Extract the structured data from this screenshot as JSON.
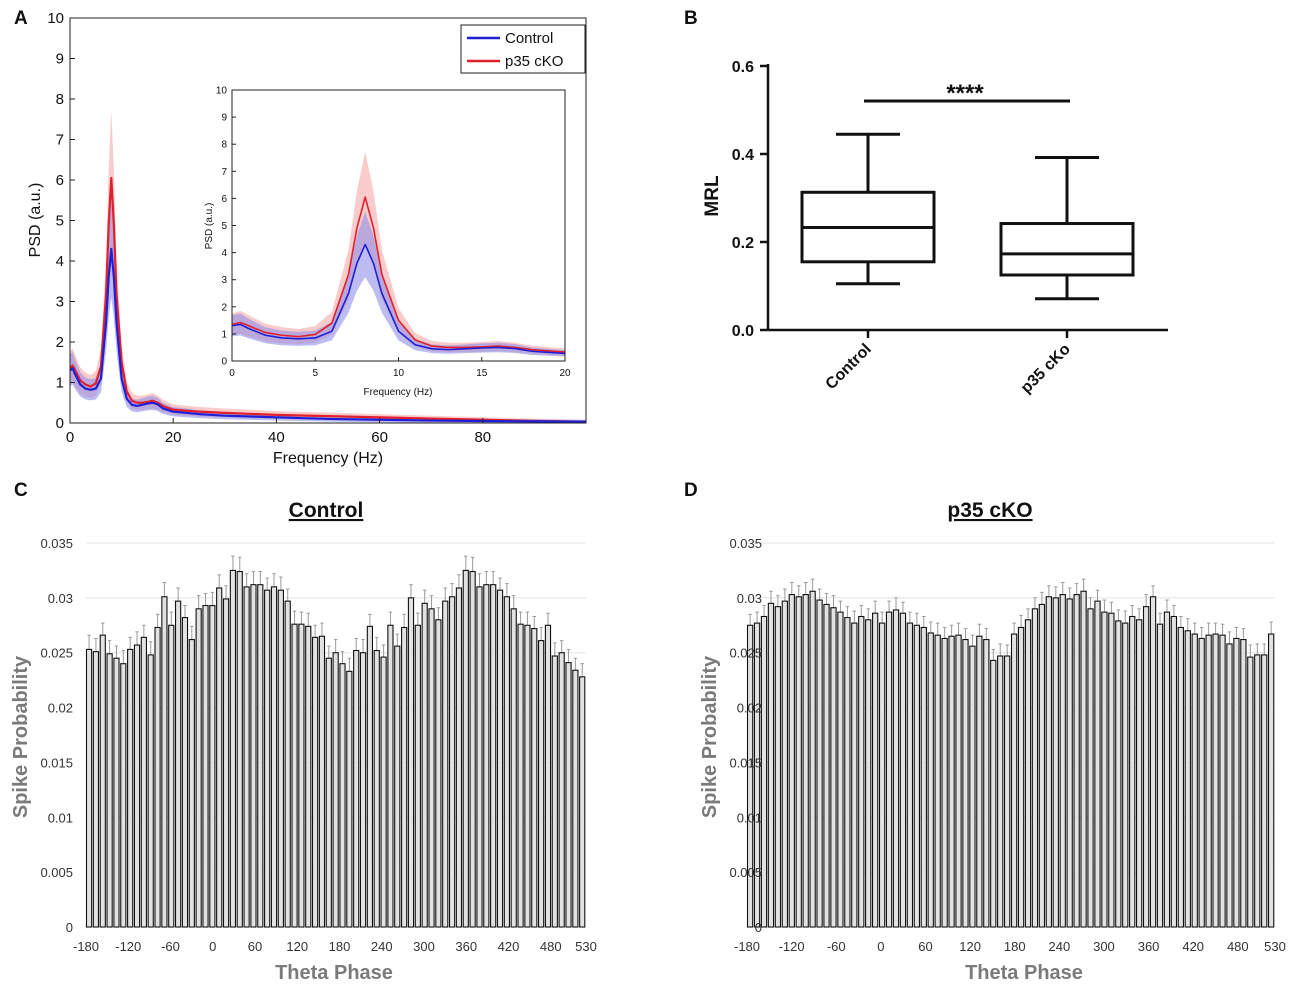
{
  "chart_data": [
    {
      "panel": "A",
      "type": "line",
      "xlabel": "Frequency (Hz)",
      "ylabel": "PSD (a.u.)",
      "xlim": [
        0,
        100
      ],
      "ylim": [
        0,
        10
      ],
      "xticks": [
        0,
        20,
        40,
        60,
        80
      ],
      "yticks": [
        0,
        1,
        2,
        3,
        4,
        5,
        6,
        7,
        8,
        9,
        10
      ],
      "legend": [
        "Control",
        "p35 cKO"
      ],
      "legend_position": "top-right",
      "colors": {
        "Control": "#1f1fd6",
        "p35 cKO": "#e0202a",
        "control_band": "#8f8fe8",
        "cko_band": "#f4a0a0"
      },
      "series": [
        {
          "name": "Control",
          "x": [
            0,
            0.5,
            1,
            2,
            3,
            4,
            5,
            6,
            7,
            7.5,
            8,
            8.5,
            9,
            10,
            11,
            12,
            13,
            14,
            15,
            16,
            17,
            18,
            20,
            25,
            30,
            40,
            50,
            60,
            70,
            80,
            90,
            100
          ],
          "values": [
            1.3,
            1.35,
            1.2,
            0.95,
            0.85,
            0.82,
            0.85,
            1.1,
            2.5,
            3.6,
            4.3,
            3.6,
            2.5,
            1.1,
            0.6,
            0.45,
            0.42,
            0.45,
            0.48,
            0.5,
            0.46,
            0.36,
            0.28,
            0.22,
            0.18,
            0.14,
            0.1,
            0.08,
            0.06,
            0.05,
            0.04,
            0.03
          ]
        },
        {
          "name": "p35 cKO",
          "x": [
            0,
            0.5,
            1,
            2,
            3,
            4,
            5,
            6,
            7,
            7.5,
            8,
            8.5,
            9,
            10,
            11,
            12,
            13,
            14,
            15,
            16,
            17,
            18,
            20,
            25,
            30,
            40,
            50,
            60,
            70,
            80,
            90,
            100
          ],
          "values": [
            1.35,
            1.42,
            1.3,
            1.05,
            0.95,
            0.9,
            0.98,
            1.4,
            3.2,
            4.9,
            6.05,
            4.9,
            3.2,
            1.5,
            0.78,
            0.55,
            0.5,
            0.5,
            0.52,
            0.55,
            0.5,
            0.42,
            0.33,
            0.28,
            0.25,
            0.2,
            0.17,
            0.14,
            0.11,
            0.08,
            0.05,
            0.03
          ]
        }
      ],
      "inset": {
        "xlabel": "Frequency (Hz)",
        "ylabel": "PSD (a.u.)",
        "xlim": [
          0,
          20
        ],
        "ylim": [
          0,
          10
        ],
        "xticks": [
          0,
          5,
          10,
          15,
          20
        ],
        "yticks": [
          0,
          1,
          2,
          3,
          4,
          5,
          6,
          7,
          8,
          9,
          10
        ]
      }
    },
    {
      "panel": "B",
      "type": "box",
      "ylabel": "MRL",
      "ylim": [
        0,
        0.6
      ],
      "yticks": [
        "0.0",
        "0.2",
        "0.4",
        "0.6"
      ],
      "categories": [
        "Control",
        "p35 cKo"
      ],
      "boxes": [
        {
          "name": "Control",
          "min": 0.105,
          "q1": 0.155,
          "median": 0.233,
          "q3": 0.313,
          "max": 0.445
        },
        {
          "name": "p35 cKo",
          "min": 0.071,
          "q1": 0.125,
          "median": 0.173,
          "q3": 0.242,
          "max": 0.392
        }
      ],
      "significance": "****"
    },
    {
      "panel": "C",
      "type": "bar",
      "title": "Control",
      "xlabel": "Theta Phase",
      "ylabel": "Spike Probability",
      "ylim": [
        0,
        0.035
      ],
      "yticks": [
        "0",
        "0.005",
        "0.01",
        "0.015",
        "0.02",
        "0.025",
        "0.03",
        "0.035"
      ],
      "xticks": [
        "-180",
        "-120",
        "-60",
        "0",
        "60",
        "120",
        "180",
        "240",
        "300",
        "360",
        "420",
        "480",
        "530"
      ],
      "values": [
        0.0253,
        0.0251,
        0.0266,
        0.0249,
        0.0245,
        0.024,
        0.0253,
        0.0257,
        0.0264,
        0.0248,
        0.0273,
        0.0301,
        0.0275,
        0.0297,
        0.0282,
        0.0262,
        0.029,
        0.0293,
        0.0293,
        0.0309,
        0.0299,
        0.0325,
        0.0324,
        0.031,
        0.0312,
        0.0312,
        0.0307,
        0.031,
        0.0307,
        0.0297,
        0.0276,
        0.0276,
        0.0274,
        0.0264,
        0.0265,
        0.0245,
        0.025,
        0.024,
        0.0233,
        0.0252,
        0.025,
        0.0274,
        0.0252,
        0.0246,
        0.0275,
        0.0256,
        0.0273,
        0.03,
        0.0275,
        0.0295,
        0.029,
        0.028,
        0.0297,
        0.0301,
        0.0309,
        0.0325,
        0.0324,
        0.031,
        0.0312,
        0.0312,
        0.0307,
        0.0301,
        0.029,
        0.0276,
        0.0275,
        0.0272,
        0.0261,
        0.0275,
        0.0247,
        0.025,
        0.0241,
        0.0234,
        0.0228
      ],
      "errors": [
        0.0013,
        0.0012,
        0.0011,
        0.0012,
        0.0011,
        0.0012,
        0.0011,
        0.0012,
        0.0011,
        0.0012,
        0.0012,
        0.0013,
        0.0012,
        0.0012,
        0.0011,
        0.0012,
        0.0012,
        0.0011,
        0.0012,
        0.0012,
        0.0012,
        0.0013,
        0.0013,
        0.0012,
        0.0012,
        0.0012,
        0.0011,
        0.0012,
        0.0012,
        0.0011,
        0.0012,
        0.0011,
        0.0012,
        0.0011,
        0.0012,
        0.0011,
        0.0012,
        0.0011,
        0.0012,
        0.0011,
        0.0012,
        0.0011,
        0.0012,
        0.0011,
        0.0012,
        0.0011,
        0.0012,
        0.0012,
        0.0011,
        0.0012,
        0.0012,
        0.0011,
        0.0012,
        0.0012,
        0.0012,
        0.0013,
        0.0013,
        0.0012,
        0.0012,
        0.0012,
        0.0011,
        0.0012,
        0.0012,
        0.0011,
        0.0012,
        0.0011,
        0.0012,
        0.0011,
        0.0012,
        0.0011,
        0.0012,
        0.0011,
        0.0012
      ]
    },
    {
      "panel": "D",
      "type": "bar",
      "title": "p35 cKO",
      "xlabel": "Theta Phase",
      "ylabel": "Spike Probability",
      "ylim": [
        0,
        0.035
      ],
      "yticks": [
        "0",
        "0.005",
        "0.01",
        "0.015",
        "0.02",
        "0.025",
        "0.03",
        "0.035"
      ],
      "xticks": [
        "-180",
        "-120",
        "-60",
        "0",
        "60",
        "120",
        "180",
        "240",
        "300",
        "360",
        "420",
        "480",
        "530"
      ],
      "values": [
        0.0275,
        0.0277,
        0.0283,
        0.0295,
        0.0292,
        0.0297,
        0.0303,
        0.0301,
        0.0303,
        0.0306,
        0.0298,
        0.0294,
        0.0291,
        0.0287,
        0.0282,
        0.0277,
        0.0283,
        0.028,
        0.0286,
        0.0277,
        0.0287,
        0.0289,
        0.0286,
        0.0277,
        0.0275,
        0.0273,
        0.0268,
        0.0266,
        0.0263,
        0.0265,
        0.0266,
        0.0262,
        0.0256,
        0.0265,
        0.0262,
        0.0243,
        0.0247,
        0.0247,
        0.0267,
        0.0273,
        0.028,
        0.029,
        0.0294,
        0.0301,
        0.03,
        0.0303,
        0.0299,
        0.0303,
        0.0306,
        0.029,
        0.0297,
        0.0287,
        0.0286,
        0.0279,
        0.0277,
        0.0283,
        0.028,
        0.0292,
        0.0301,
        0.0276,
        0.0287,
        0.0283,
        0.0273,
        0.027,
        0.0267,
        0.0263,
        0.0266,
        0.0267,
        0.0266,
        0.0258,
        0.0263,
        0.0262,
        0.0246,
        0.0248,
        0.0248,
        0.0267
      ],
      "errors": [
        0.001,
        0.001,
        0.001,
        0.0011,
        0.001,
        0.0011,
        0.0011,
        0.001,
        0.0011,
        0.0011,
        0.001,
        0.001,
        0.0011,
        0.001,
        0.001,
        0.0011,
        0.001,
        0.001,
        0.0011,
        0.001,
        0.001,
        0.0011,
        0.001,
        0.001,
        0.0011,
        0.001,
        0.001,
        0.0011,
        0.001,
        0.001,
        0.0011,
        0.001,
        0.001,
        0.0011,
        0.001,
        0.001,
        0.0011,
        0.001,
        0.001,
        0.0011,
        0.001,
        0.001,
        0.0011,
        0.001,
        0.001,
        0.0011,
        0.001,
        0.001,
        0.0011,
        0.001,
        0.001,
        0.0011,
        0.001,
        0.001,
        0.0011,
        0.001,
        0.001,
        0.0011,
        0.001,
        0.001,
        0.0011,
        0.001,
        0.001,
        0.0011,
        0.001,
        0.001,
        0.0011,
        0.001,
        0.001,
        0.0011,
        0.001,
        0.001,
        0.0011,
        0.001,
        0.001,
        0.0011
      ]
    }
  ],
  "panels": {
    "a": "A",
    "b": "B",
    "c": "C",
    "d": "D"
  }
}
